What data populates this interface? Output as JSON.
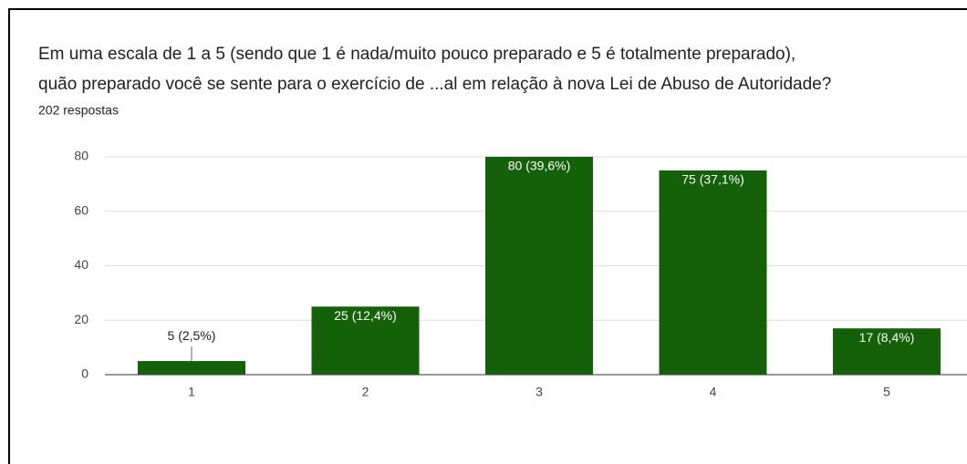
{
  "chart_data": {
    "type": "bar",
    "title": [
      "Em uma escala de 1 a 5 (sendo que 1 é nada/muito pouco preparado e 5 é totalmente preparado),",
      "quão preparado você se sente para o exercício de ...al em relação à nova Lei de Abuso de Autoridade?"
    ],
    "subtitle": "202 respostas",
    "categories": [
      "1",
      "2",
      "3",
      "4",
      "5"
    ],
    "values": [
      5,
      25,
      80,
      75,
      17
    ],
    "value_labels": [
      "5 (2,5%)",
      "25 (12,4%)",
      "80 (39,6%)",
      "75 (37,1%)",
      "17 (8,4%)"
    ],
    "color": "#146109",
    "ylim": [
      0,
      80
    ],
    "yticks": [
      0,
      20,
      40,
      60,
      80
    ],
    "grid": true
  }
}
